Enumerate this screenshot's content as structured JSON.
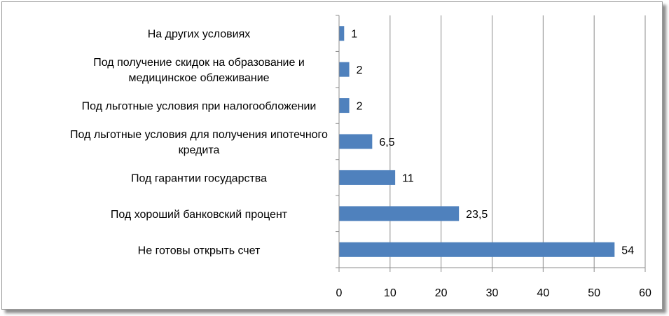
{
  "chart_data": {
    "type": "bar",
    "orientation": "horizontal",
    "categories": [
      [
        "Не готовы открыть счет"
      ],
      [
        "Под хороший  банковский процент"
      ],
      [
        "Под гарантии  государства"
      ],
      [
        "Под льготные условия для получения ипотечного",
        "кредита"
      ],
      [
        "Под льготные условия при налогообложении"
      ],
      [
        "Под получение скидок на образование и",
        "медицинское облеживание"
      ],
      [
        "На других условиях"
      ]
    ],
    "values": [
      54,
      23.5,
      11,
      6.5,
      2,
      2,
      1
    ],
    "value_labels": [
      "54",
      "23,5",
      "11",
      "6,5",
      "2",
      "2",
      "1"
    ],
    "xlim": [
      0,
      60
    ],
    "x_ticks": [
      "0",
      "10",
      "20",
      "30",
      "40",
      "50",
      "60"
    ],
    "grid": true,
    "bar_color": "#4f81bd",
    "gridline_color": "#8c8c8c"
  }
}
